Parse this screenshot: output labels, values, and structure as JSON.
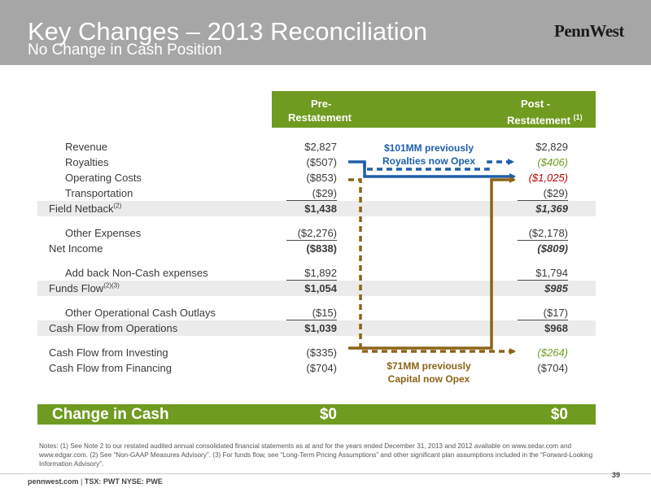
{
  "header": {
    "title": "Key Changes – 2013 Reconciliation",
    "subtitle": "No Change in Cash Position",
    "logo": "PennWest"
  },
  "columns": {
    "pre_line1": "Pre-",
    "pre_line2": "Restatement",
    "post_line1": "Post -",
    "post_line2": "Restatement",
    "post_note": "(1)"
  },
  "rows": [
    {
      "label": "Revenue",
      "pre": "$2,827",
      "post": "$2,829"
    },
    {
      "label": "Royalties",
      "pre": "($507)",
      "post": "($406)"
    },
    {
      "label": "Operating Costs",
      "pre": "($853)",
      "post": "($1,025)"
    },
    {
      "label": "Transportation",
      "pre": "($29)",
      "post": "($29)"
    },
    {
      "label": "Field Netback",
      "sup": "(2)",
      "pre": "$1,438",
      "post": "$1,369"
    },
    {
      "label": "Other Expenses",
      "pre": "($2,276)",
      "post": "($2,178)"
    },
    {
      "label": "Net Income",
      "pre": "($838)",
      "post": "($809)"
    },
    {
      "label": "Add back Non-Cash expenses",
      "pre": "$1,892",
      "post": "$1,794"
    },
    {
      "label": "Funds Flow",
      "sup": "(2)(3)",
      "pre": "$1,054",
      "post": "$985"
    },
    {
      "label": "Other Operational Cash Outlays",
      "pre": "($15)",
      "post": "($17)"
    },
    {
      "label": "Cash Flow from Operations",
      "pre": "$1,039",
      "post": "$968"
    },
    {
      "label": "Cash Flow from Investing",
      "pre": "($335)",
      "post": "($264)"
    },
    {
      "label": "Cash Flow from Financing",
      "pre": "($704)",
      "post": "($704)"
    }
  ],
  "callouts": {
    "blue_line1": "$101MM previously",
    "blue_line2": "Royalties now Opex",
    "brown_line1": "$71MM previously",
    "brown_line2": "Capital now Opex"
  },
  "change": {
    "label": "Change in Cash",
    "pre": "$0",
    "post": "$0"
  },
  "notes": "Notes: (1) See Note 2 to our restated audited annual consolidated financial statements as at and for the years ended December 31, 2013 and 2012 available on www.sedar.com and www.edgar.com. (2) See “Non-GAAP Measures Advisory”. (3) For funds flow, see “Long-Term Pricing Assumptions” and other significant plan assumptions included in the “Forward-Looking Information Advisory”.",
  "footer": {
    "site": "pennwest.com",
    "sep": " | ",
    "tickers": "TSX: PWT  NYSE: PWE"
  },
  "page_number": "39",
  "colors": {
    "header_gray": "#a6a6a6",
    "green": "#6f9b20",
    "blue": "#1f5fa8",
    "brown": "#8b6417",
    "red": "#c00000",
    "shade": "#ebebeb"
  }
}
